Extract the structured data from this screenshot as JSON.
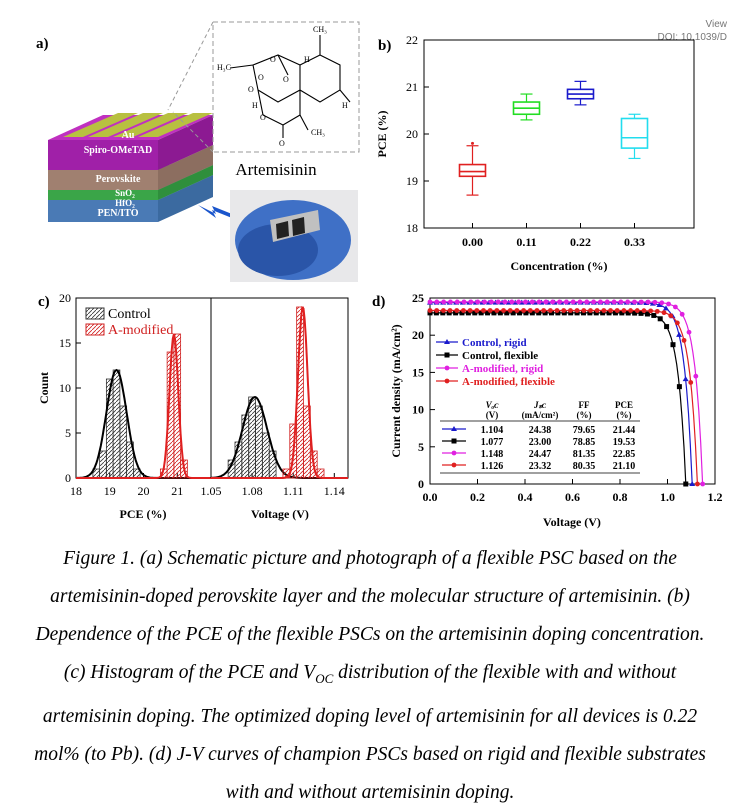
{
  "header_link": {
    "view": "View",
    "doi": "DOI: 10.1039/D"
  },
  "panel_a": {
    "label": "a)",
    "layers": [
      "Au",
      "Spiro-OMeTAD",
      "Perovskite",
      "SnO₂",
      "HfO₂",
      "PEN/ITO"
    ],
    "molecule_name": "Artemisinin",
    "atom_labels": [
      "H₃C",
      "H",
      "O",
      "O",
      "O",
      "O",
      "H",
      "H",
      "CH₃",
      "CH₃",
      "O",
      "O"
    ]
  },
  "chart_data": [
    {
      "panel_label": "b)",
      "type": "box",
      "categories": [
        "0.00",
        "0.11",
        "0.22",
        "0.33"
      ],
      "xlabel": "Concentration (%)",
      "ylabel": "PCE (%)",
      "ylim": [
        18,
        22
      ],
      "yticks": [
        "18",
        "19",
        "20",
        "21",
        "22"
      ],
      "boxes": [
        {
          "category": "0.00",
          "min": 18.7,
          "q1": 19.1,
          "median": 19.2,
          "q3": 19.35,
          "max": 19.75,
          "outlier": 19.8,
          "color": "#e02020"
        },
        {
          "category": "0.11",
          "min": 20.3,
          "q1": 20.42,
          "median": 20.55,
          "q3": 20.68,
          "max": 20.85,
          "outlier": null,
          "color": "#22dd22"
        },
        {
          "category": "0.22",
          "min": 20.62,
          "q1": 20.75,
          "median": 20.85,
          "q3": 20.95,
          "max": 21.12,
          "outlier": null,
          "color": "#1a1acc"
        },
        {
          "category": "0.33",
          "min": 19.48,
          "q1": 19.7,
          "median": 19.92,
          "q3": 20.33,
          "max": 20.42,
          "outlier": null,
          "color": "#22ddee"
        }
      ]
    },
    {
      "panel_label": "c)",
      "type": "bar",
      "subtype": "histogram",
      "ylabel": "Count",
      "ylim": [
        0,
        20
      ],
      "yticks": [
        "0",
        "5",
        "10",
        "15",
        "20"
      ],
      "legend": [
        "Control",
        "A-modified"
      ],
      "left": {
        "xlabel": "PCE (%)",
        "xlim": [
          18,
          22
        ],
        "xticks": [
          "18",
          "19",
          "20",
          "21"
        ],
        "bin_width": 0.2,
        "series": [
          {
            "name": "Control",
            "color": "#333333",
            "bins": [
              [
                18.6,
                1
              ],
              [
                18.8,
                3
              ],
              [
                19.0,
                11
              ],
              [
                19.2,
                12
              ],
              [
                19.4,
                8
              ],
              [
                19.6,
                4
              ],
              [
                19.8,
                1
              ]
            ],
            "fit": {
              "mean": 19.2,
              "sd": 0.3,
              "peak": 12
            }
          },
          {
            "name": "A-modified",
            "color": "#d02020",
            "bins": [
              [
                20.6,
                1
              ],
              [
                20.8,
                14
              ],
              [
                21.0,
                16
              ],
              [
                21.2,
                2
              ]
            ],
            "fit": {
              "mean": 20.9,
              "sd": 0.13,
              "peak": 16
            }
          }
        ]
      },
      "right": {
        "xlabel": "Voltage (V)",
        "xlim": [
          1.05,
          1.15
        ],
        "xticks": [
          "1.05",
          "1.08",
          "1.11",
          "1.14"
        ],
        "bin_width": 0.005,
        "series": [
          {
            "name": "Control",
            "color": "#333333",
            "bins": [
              [
                1.065,
                2
              ],
              [
                1.07,
                4
              ],
              [
                1.075,
                7
              ],
              [
                1.08,
                9
              ],
              [
                1.085,
                8
              ],
              [
                1.09,
                5
              ],
              [
                1.095,
                3
              ]
            ],
            "fit": {
              "mean": 1.082,
              "sd": 0.009,
              "peak": 9
            }
          },
          {
            "name": "A-modified",
            "color": "#d02020",
            "bins": [
              [
                1.105,
                1
              ],
              [
                1.11,
                6
              ],
              [
                1.115,
                19
              ],
              [
                1.12,
                8
              ],
              [
                1.125,
                3
              ],
              [
                1.13,
                1
              ]
            ],
            "fit": {
              "mean": 1.117,
              "sd": 0.0035,
              "peak": 19
            }
          }
        ]
      }
    },
    {
      "panel_label": "d)",
      "type": "line",
      "xlabel": "Voltage (V)",
      "ylabel": "Current density (mA/cm²)",
      "xlim": [
        0,
        1.2
      ],
      "ylim": [
        0,
        25
      ],
      "xticks": [
        "0.0",
        "0.2",
        "0.4",
        "0.6",
        "0.8",
        "1.0",
        "1.2"
      ],
      "yticks": [
        "0",
        "5",
        "10",
        "15",
        "20",
        "25"
      ],
      "series": [
        {
          "name": "Control, rigid",
          "color": "#1a1acc",
          "marker": "triangle",
          "voc": 1.104,
          "jsc": 24.38,
          "ff": 79.65,
          "pce": 21.44
        },
        {
          "name": "Control, flexible",
          "color": "#000000",
          "marker": "square",
          "voc": 1.077,
          "jsc": 23.0,
          "ff": 78.85,
          "pce": 19.53
        },
        {
          "name": "A-modified, rigid",
          "color": "#e020e0",
          "marker": "circle",
          "voc": 1.148,
          "jsc": 24.47,
          "ff": 81.35,
          "pce": 22.85
        },
        {
          "name": "A-modified, flexible",
          "color": "#e02020",
          "marker": "circle",
          "voc": 1.126,
          "jsc": 23.32,
          "ff": 80.35,
          "pce": 21.1
        }
      ],
      "table": {
        "headers": [
          [
            "Vₒᴄ",
            "(V)"
          ],
          [
            "Jₛᴄ",
            "(mA/cm²)"
          ],
          [
            "FF",
            "(%)"
          ],
          [
            "PCE",
            "(%)"
          ]
        ],
        "rows": [
          [
            "1.104",
            "24.38",
            "79.65",
            "21.44"
          ],
          [
            "1.077",
            "23.00",
            "78.85",
            "19.53"
          ],
          [
            "1.148",
            "24.47",
            "81.35",
            "22.85"
          ],
          [
            "1.126",
            "23.32",
            "80.35",
            "21.10"
          ]
        ]
      }
    }
  ],
  "caption_lines": [
    "Figure 1. (a) Schematic picture and photograph of a flexible PSC based on the",
    "artemisinin-doped perovskite layer and the molecular structure of artemisinin. (b)",
    "Dependence of the PCE of the flexible PSCs on the artemisinin doping concentration.",
    "(c) Histogram of the PCE and V",
    "OC",
    " distribution of the flexible with and without",
    "artemisinin doping. The optimized doping level of artemisinin for all devices is 0.22",
    "mol% (to Pb). (d) J-V curves of champion PSCs based on rigid and flexible substrates",
    "with and without artemisinin doping."
  ]
}
